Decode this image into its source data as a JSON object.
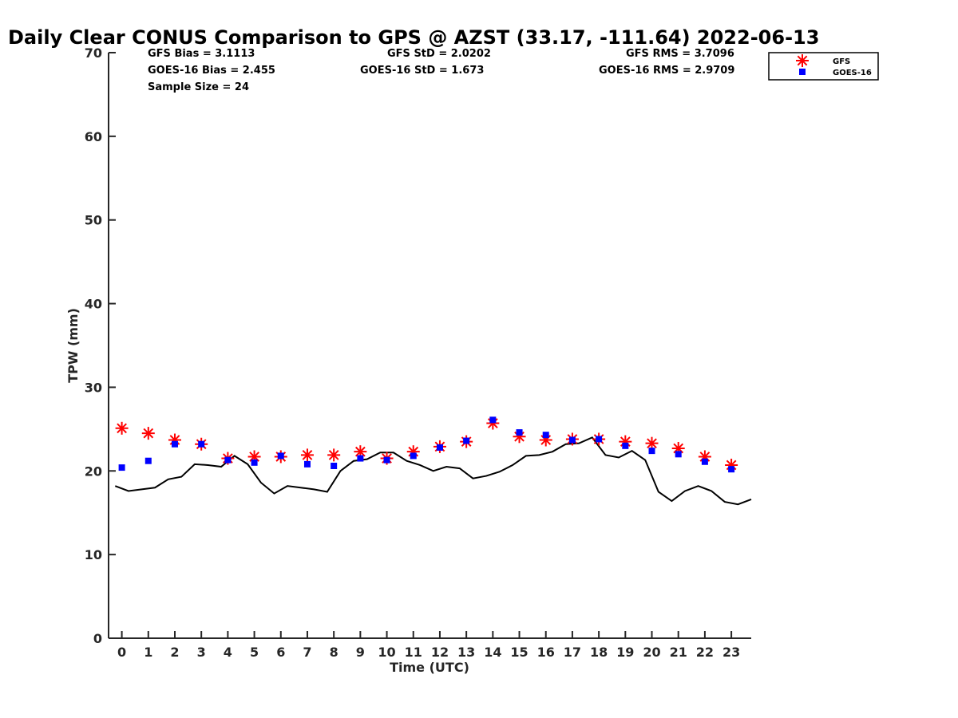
{
  "chart_data": {
    "type": "scatter",
    "title": "Daily Clear CONUS Comparison to GPS @ AZST (33.17, -111.64) 2022-06-13",
    "xlabel": "Time (UTC)",
    "ylabel": "TPW (mm)",
    "xlim": [
      -0.5,
      23.75
    ],
    "ylim": [
      0,
      70
    ],
    "x_ticks": [
      "0",
      "1",
      "2",
      "3",
      "4",
      "5",
      "6",
      "7",
      "8",
      "9",
      "10",
      "11",
      "12",
      "13",
      "14",
      "15",
      "16",
      "17",
      "18",
      "19",
      "20",
      "21",
      "22",
      "23"
    ],
    "y_ticks": [
      "0",
      "10",
      "20",
      "30",
      "40",
      "50",
      "60",
      "70"
    ],
    "grid": false,
    "legend_position": "top-right",
    "stats": {
      "gfs_bias": "GFS Bias = 3.1113",
      "goes_bias": "GOES-16 Bias = 2.455",
      "sample_size": "Sample Size = 24",
      "gfs_std": "GFS StD = 2.0202",
      "goes_std": "GOES-16 StD = 1.673",
      "gfs_rms": "GFS RMS = 3.7096",
      "goes_rms": "GOES-16 RMS = 2.9709"
    },
    "series": [
      {
        "name": "GFS",
        "marker": "asterisk",
        "color": "#ff0000",
        "x": [
          0,
          1,
          2,
          3,
          4,
          5,
          6,
          7,
          8,
          9,
          10,
          11,
          12,
          13,
          14,
          15,
          16,
          17,
          18,
          19,
          20,
          21,
          22,
          23
        ],
        "values": [
          25.1,
          24.5,
          23.7,
          23.2,
          21.5,
          21.7,
          21.7,
          21.9,
          21.9,
          22.3,
          21.5,
          22.3,
          22.9,
          23.5,
          25.7,
          24.1,
          23.7,
          23.8,
          23.8,
          23.5,
          23.3,
          22.7,
          21.7,
          20.7
        ]
      },
      {
        "name": "GOES-16",
        "marker": "square",
        "color": "#0000ff",
        "x": [
          0,
          1,
          2,
          3,
          4,
          5,
          6,
          7,
          8,
          9,
          10,
          11,
          12,
          13,
          14,
          15,
          16,
          17,
          18,
          19,
          20,
          21,
          22,
          23
        ],
        "values": [
          20.4,
          21.2,
          23.2,
          23.2,
          21.3,
          21.0,
          21.8,
          20.8,
          20.6,
          21.5,
          21.3,
          21.8,
          22.8,
          23.6,
          26.1,
          24.6,
          24.3,
          23.7,
          23.8,
          23.0,
          22.4,
          22.0,
          21.1,
          20.2
        ]
      },
      {
        "name": "GPS",
        "marker": "line",
        "color": "#000000",
        "x": [
          -0.25,
          0.25,
          0.75,
          1.25,
          1.75,
          2.25,
          2.75,
          3.25,
          3.75,
          4.25,
          4.75,
          5.25,
          5.75,
          6.25,
          6.75,
          7.25,
          7.75,
          8.25,
          8.75,
          9.25,
          9.75,
          10.25,
          10.75,
          11.25,
          11.75,
          12.25,
          12.75,
          13.25,
          13.75,
          14.25,
          14.75,
          15.25,
          15.75,
          16.25,
          16.75,
          17.25,
          17.75,
          18.25,
          18.75,
          19.25,
          19.75,
          20.25,
          20.75,
          21.25,
          21.75,
          22.25,
          22.75,
          23.25,
          23.75
        ],
        "values": [
          18.2,
          17.6,
          17.8,
          18.0,
          19.0,
          19.3,
          20.8,
          20.7,
          20.5,
          21.8,
          20.8,
          18.6,
          17.3,
          18.2,
          18.0,
          17.8,
          17.5,
          20.0,
          21.2,
          21.4,
          22.2,
          22.2,
          21.2,
          20.7,
          20.0,
          20.5,
          20.3,
          19.1,
          19.4,
          19.9,
          20.7,
          21.8,
          21.9,
          22.3,
          23.2,
          23.3,
          24.0,
          21.9,
          21.6,
          22.4,
          21.3,
          17.5,
          16.4,
          17.6,
          18.2,
          17.6,
          16.3,
          16.0,
          16.6
        ]
      }
    ]
  }
}
